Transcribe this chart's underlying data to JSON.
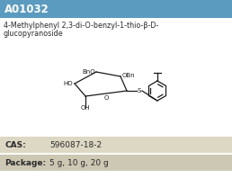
{
  "header_text": "A01032",
  "header_bg": "#5b9bbf",
  "header_text_color": "#ffffff",
  "title_line1": "4-Methylphenyl 2,3-di-O-benzyl-1-thio-β-D-",
  "title_line2": "glucopyranoside",
  "cas_label": "CAS:",
  "cas_value": "596087-18-2",
  "package_label": "Package:",
  "package_value": "5 g, 10 g, 20 g",
  "row1_bg": "#ddd8c4",
  "row2_bg": "#ccc8b4",
  "body_bg": "#ffffff",
  "text_color": "#2a2a2a",
  "fig_width": 2.58,
  "fig_height": 1.98,
  "dpi": 100
}
